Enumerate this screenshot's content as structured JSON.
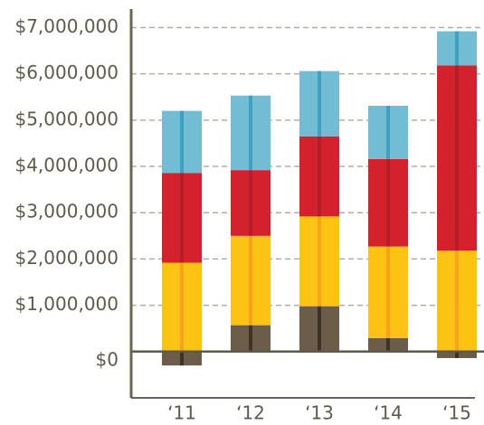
{
  "chart_data": {
    "type": "stacked-bar",
    "categories": [
      "‘11",
      "‘12",
      "‘13",
      "‘14",
      "‘15"
    ],
    "series": [
      {
        "color": "#6b5d4a",
        "stripe": "#3e3426",
        "values": [
          -300000,
          570000,
          980000,
          290000,
          -140000
        ]
      },
      {
        "color": "#fdc314",
        "stripe": "#f7a21b",
        "values": [
          1920000,
          1930000,
          1940000,
          1980000,
          2180000
        ]
      },
      {
        "color": "#d3222e",
        "stripe": "#b51d27",
        "values": [
          1940000,
          1420000,
          1730000,
          1890000,
          4000000
        ]
      },
      {
        "color": "#72bcd4",
        "stripe": "#3fa1bd",
        "values": [
          1340000,
          1610000,
          1410000,
          1150000,
          740000
        ]
      }
    ],
    "ylim": [
      -1000000,
      7400000
    ],
    "yticks": [
      {
        "value": 0,
        "label": "$0"
      },
      {
        "value": 1000000,
        "label": "$1,000,000"
      },
      {
        "value": 2000000,
        "label": "$2,000,000"
      },
      {
        "value": 3000000,
        "label": "$3,000,000"
      },
      {
        "value": 4000000,
        "label": "$4,000,000"
      },
      {
        "value": 5000000,
        "label": "$5,000,000"
      },
      {
        "value": 6000000,
        "label": "$6,000,000"
      },
      {
        "value": 7000000,
        "label": "$7,000,000"
      }
    ],
    "grid": true
  }
}
